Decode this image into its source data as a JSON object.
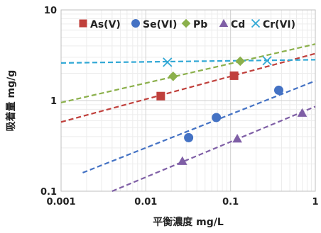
{
  "chart_data": {
    "type": "scatter",
    "xscale": "log",
    "yscale": "log",
    "xlim": [
      0.001,
      1
    ],
    "ylim": [
      0.1,
      10
    ],
    "grid": true,
    "legend_position": "top-inside",
    "xlabel": "平衡濃度 mg/L",
    "ylabel": "吸着量 mg/g",
    "x_ticks": [
      {
        "value": 0.001,
        "label": "0.001"
      },
      {
        "value": 0.01,
        "label": "0.01"
      },
      {
        "value": 0.1,
        "label": "0.1"
      },
      {
        "value": 1,
        "label": "1"
      }
    ],
    "y_ticks": [
      {
        "value": 0.1,
        "label": "0.1"
      },
      {
        "value": 1,
        "label": "1"
      },
      {
        "value": 10,
        "label": "10"
      }
    ],
    "series": [
      {
        "name": "As(V)",
        "marker": "square",
        "color": "#c0403c",
        "points": [
          {
            "x": 0.015,
            "y": 1.12
          },
          {
            "x": 0.11,
            "y": 1.88
          }
        ],
        "trendline": {
          "x_start": 0.001,
          "y_start": 0.58,
          "x_end": 1,
          "y_end": 3.3
        }
      },
      {
        "name": "Se(VI)",
        "marker": "circle",
        "color": "#4472c4",
        "points": [
          {
            "x": 0.032,
            "y": 0.39
          },
          {
            "x": 0.068,
            "y": 0.65
          },
          {
            "x": 0.37,
            "y": 1.3
          }
        ],
        "trendline": {
          "x_start": 0.0018,
          "y_start": 0.16,
          "x_end": 1,
          "y_end": 1.65
        }
      },
      {
        "name": "Pb",
        "marker": "diamond",
        "color": "#8bb04b",
        "points": [
          {
            "x": 0.021,
            "y": 1.85
          },
          {
            "x": 0.13,
            "y": 2.72
          }
        ],
        "trendline": {
          "x_start": 0.001,
          "y_start": 0.95,
          "x_end": 1,
          "y_end": 4.2
        }
      },
      {
        "name": "Cd",
        "marker": "triangle",
        "color": "#7f5fa6",
        "points": [
          {
            "x": 0.027,
            "y": 0.215
          },
          {
            "x": 0.12,
            "y": 0.38
          },
          {
            "x": 0.7,
            "y": 0.73
          }
        ],
        "trendline": {
          "x_start": 0.004,
          "y_start": 0.1,
          "x_end": 1,
          "y_end": 0.86
        }
      },
      {
        "name": "Cr(VI)",
        "marker": "x",
        "color": "#31a8d5",
        "points": [
          {
            "x": 0.018,
            "y": 2.65
          },
          {
            "x": 0.27,
            "y": 2.75
          }
        ],
        "trendline": {
          "x_start": 0.001,
          "y_start": 2.6,
          "x_end": 1,
          "y_end": 2.82
        }
      }
    ]
  }
}
